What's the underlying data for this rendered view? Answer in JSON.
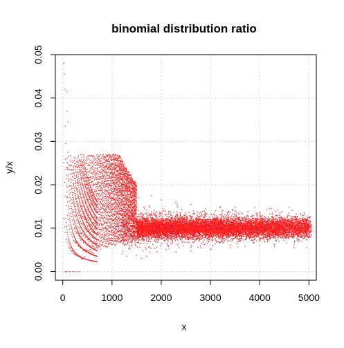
{
  "chart_data": {
    "type": "scatter",
    "title": "binomial distribution ratio",
    "xlabel": "x",
    "ylabel": "y/x",
    "xlim": [
      -150,
      5150
    ],
    "ylim": [
      -0.002,
      0.05
    ],
    "x_ticks": [
      0,
      1000,
      2000,
      3000,
      4000,
      5000
    ],
    "y_ticks": [
      0.0,
      0.01,
      0.02,
      0.03,
      0.04,
      0.05
    ],
    "x_tick_labels": [
      "0",
      "1000",
      "2000",
      "3000",
      "4000",
      "5000"
    ],
    "y_tick_labels": [
      "0.00",
      "0.01",
      "0.02",
      "0.03",
      "0.04",
      "0.05"
    ],
    "grid": true,
    "point_color": "#ff2020",
    "accent_point_color": "#7a1f5a",
    "series": [
      {
        "values_description": "",
        "points": [
          [
            20,
            0.048
          ],
          [
            30,
            0.0455
          ],
          [
            40,
            0.042
          ],
          [
            50,
            0.0335
          ],
          [
            60,
            0.0295
          ],
          [
            70,
            0.024
          ],
          [
            80,
            0.0415
          ],
          [
            90,
            0.037
          ],
          [
            100,
            0.0345
          ],
          [
            110,
            0.0275
          ],
          [
            50,
            0.0
          ],
          [
            80,
            0.0
          ],
          [
            120,
            0.0
          ],
          [
            150,
            0.0
          ],
          [
            200,
            0.0
          ],
          [
            250,
            0.0
          ],
          [
            300,
            0.0
          ],
          [
            340,
            0.0
          ],
          [
            100,
            0.024
          ],
          [
            140,
            0.0235
          ],
          [
            180,
            0.0235
          ],
          [
            250,
            0.0215
          ],
          [
            300,
            0.0205
          ],
          [
            330,
            0.0245
          ],
          [
            380,
            0.0245
          ],
          [
            420,
            0.0225
          ],
          [
            480,
            0.02
          ],
          [
            540,
            0.021
          ],
          [
            600,
            0.0215
          ],
          [
            700,
            0.0205
          ],
          [
            760,
            0.022
          ],
          [
            820,
            0.0215
          ],
          [
            900,
            0.021
          ],
          [
            1000,
            0.0205
          ],
          [
            1200,
            0.0195
          ],
          [
            1450,
            0.0185
          ],
          [
            1550,
            0.017
          ],
          [
            1800,
            0.0175
          ],
          [
            2000,
            0.0165
          ],
          [
            2300,
            0.016
          ],
          [
            2600,
            0.0155
          ],
          [
            2900,
            0.0145
          ],
          [
            3200,
            0.0148
          ],
          [
            3500,
            0.0148
          ],
          [
            3900,
            0.0148
          ],
          [
            4200,
            0.0145
          ],
          [
            4600,
            0.0148
          ],
          [
            4900,
            0.0135
          ],
          [
            2100,
            0.005
          ],
          [
            2300,
            0.0045
          ],
          [
            2600,
            0.0048
          ],
          [
            2800,
            0.0055
          ],
          [
            3000,
            0.0052
          ],
          [
            3400,
            0.0055
          ],
          [
            3700,
            0.0058
          ],
          [
            4000,
            0.006
          ],
          [
            4300,
            0.0058
          ],
          [
            4700,
            0.0055
          ],
          [
            4950,
            0.0055
          ],
          [
            1300,
            0.0035
          ],
          [
            1500,
            0.0038
          ],
          [
            1600,
            0.003
          ],
          [
            1700,
            0.0035
          ]
        ]
      }
    ]
  }
}
